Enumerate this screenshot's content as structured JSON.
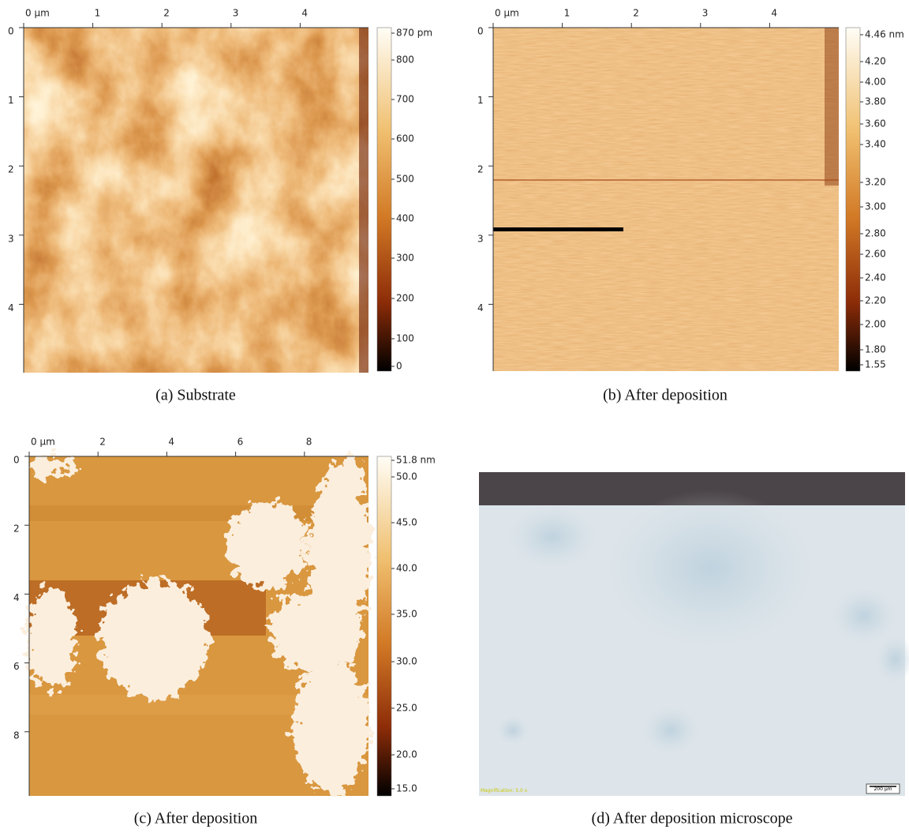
{
  "panels": [
    {
      "caption": "(a) Substrate",
      "x_ticks": [
        "0 µm",
        "1",
        "2",
        "3",
        "4"
      ],
      "y_ticks": [
        "0",
        "1",
        "2",
        "3",
        "4"
      ],
      "colorbar_ticks": [
        "870 pm",
        "800",
        "700",
        "600",
        "500",
        "400",
        "300",
        "200",
        "100",
        "0"
      ]
    },
    {
      "caption": "(b) After deposition",
      "x_ticks": [
        "0 µm",
        "1",
        "2",
        "3",
        "4"
      ],
      "y_ticks": [
        "0",
        "1",
        "2",
        "3",
        "4"
      ],
      "colorbar_ticks": [
        "4.46 nm",
        "4.20",
        "4.00",
        "3.80",
        "3.60",
        "3.40",
        "3.20",
        "3.00",
        "2.80",
        "2.60",
        "2.40",
        "2.20",
        "2.00",
        "1.80",
        "1.55"
      ]
    },
    {
      "caption": "(c) After deposition",
      "x_ticks": [
        "0 µm",
        "2",
        "4",
        "6",
        "8"
      ],
      "y_ticks": [
        "0",
        "2",
        "4",
        "6",
        "8"
      ],
      "colorbar_ticks": [
        "51.8 nm",
        "50.0",
        "45.0",
        "40.0",
        "35.0",
        "30.0",
        "25.0",
        "20.0",
        "15.0"
      ]
    },
    {
      "caption": "(d) After deposition microscope",
      "magnification": "Magnification: 5.0 x",
      "scale_bar": "200 µm"
    }
  ]
}
